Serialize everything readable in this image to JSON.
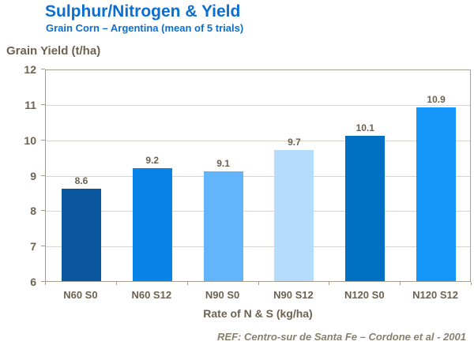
{
  "header": {
    "title": "Sulphur/Nitrogen & Yield",
    "subtitle": "Grain Corn – Argentina (mean of 5 trials)"
  },
  "footer": {
    "reference": "REF: Centro-sur de Santa Fe – Cordone et al - 2001"
  },
  "colors": {
    "title_blue": "#0a6fd0",
    "axis_text": "#6d6150",
    "reference_text": "#87806f",
    "plot_frame": "#a79d8d",
    "gridline": "#d9d5cc",
    "background": "#ffffff"
  },
  "chart_data": {
    "type": "bar",
    "title": "Sulphur/Nitrogen & Yield",
    "subtitle": "Grain Corn – Argentina (mean of 5 trials)",
    "categories": [
      "N60 S0",
      "N60 S12",
      "N90 S0",
      "N90 S12",
      "N120 S0",
      "N120 S12"
    ],
    "values": [
      8.6,
      9.2,
      9.1,
      9.7,
      10.1,
      10.9
    ],
    "bar_colors": [
      "#0a57a0",
      "#0884e8",
      "#63b5fb",
      "#b5dcfb",
      "#0071c2",
      "#1495f9"
    ],
    "value_labels": [
      "8.6",
      "9.2",
      "9.1",
      "9.7",
      "10.1",
      "10.9"
    ],
    "xlabel": "Rate of N & S (kg/ha)",
    "ylabel": "Grain Yield (t/ha)",
    "ylim": [
      6,
      12
    ],
    "yticks": [
      6,
      7,
      8,
      9,
      10,
      11,
      12
    ],
    "grid": true,
    "legend": false
  }
}
